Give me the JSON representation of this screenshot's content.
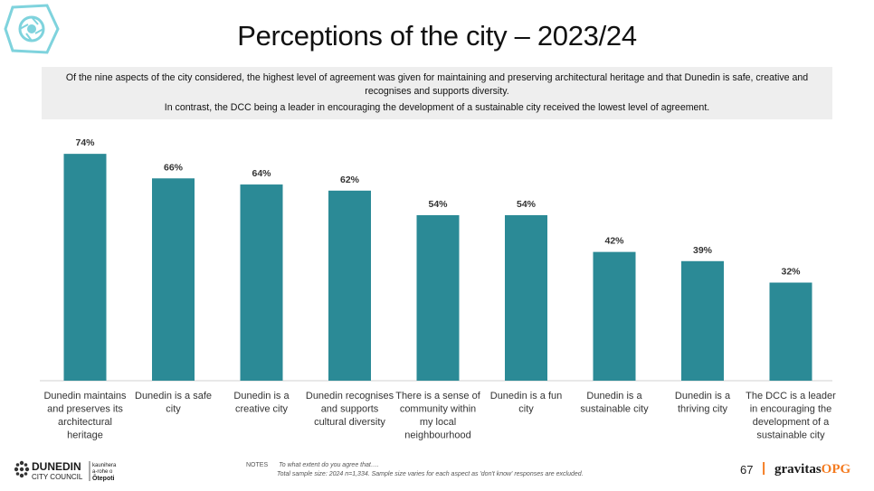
{
  "page_title": "Perceptions of the city – 2023/24",
  "summary": {
    "line1": "Of the nine aspects of the city considered, the highest level of agreement was given for maintaining and preserving architectural heritage and that Dunedin is safe, creative and recognises and supports diversity.",
    "line2": "In contrast, the DCC being a leader in encouraging the development of a sustainable city received the lowest level of agreement."
  },
  "chart_data": {
    "type": "bar",
    "categories": [
      [
        "Dunedin maintains",
        "and preserves its",
        "architectural",
        "heritage"
      ],
      [
        "Dunedin is a safe",
        "city"
      ],
      [
        "Dunedin is a",
        "creative city"
      ],
      [
        "Dunedin recognises",
        "and supports",
        "cultural diversity"
      ],
      [
        "There is a sense of",
        "community within",
        "my local",
        "neighbourhood"
      ],
      [
        "Dunedin is a fun",
        "city"
      ],
      [
        "Dunedin is a",
        "sustainable city"
      ],
      [
        "Dunedin is a",
        "thriving city"
      ],
      [
        "The DCC is a leader",
        "in encouraging the",
        "development of a",
        "sustainable city"
      ]
    ],
    "values": [
      74,
      66,
      64,
      62,
      54,
      54,
      42,
      39,
      32
    ],
    "value_labels": [
      "74%",
      "66%",
      "64%",
      "62%",
      "54%",
      "54%",
      "42%",
      "39%",
      "32%"
    ],
    "ylim": [
      0,
      80
    ],
    "bar_color": "#2b8a96",
    "grid": false,
    "legend": "none"
  },
  "footer": {
    "logo_main": "DUNEDIN",
    "logo_sub": "CITY COUNCIL",
    "logo_maori_1": "kaunihera",
    "logo_maori_2": "a-rohe o",
    "logo_maori_3": "Ōtepoti",
    "notes_key": "NOTES",
    "notes_line1": "To what extent do you agree that….",
    "notes_line2": "Total sample size: 2024 n=1,334. Sample size varies  for each aspect as 'don't know' responses are excluded.",
    "page_number": "67",
    "brand_separator": "|",
    "brand_main": "gravitas",
    "brand_accent": "OPG"
  },
  "colors": {
    "accent_teal": "#2b8a96",
    "brand_orange": "#f47b20",
    "logo_cyan": "#7fd3dd"
  }
}
